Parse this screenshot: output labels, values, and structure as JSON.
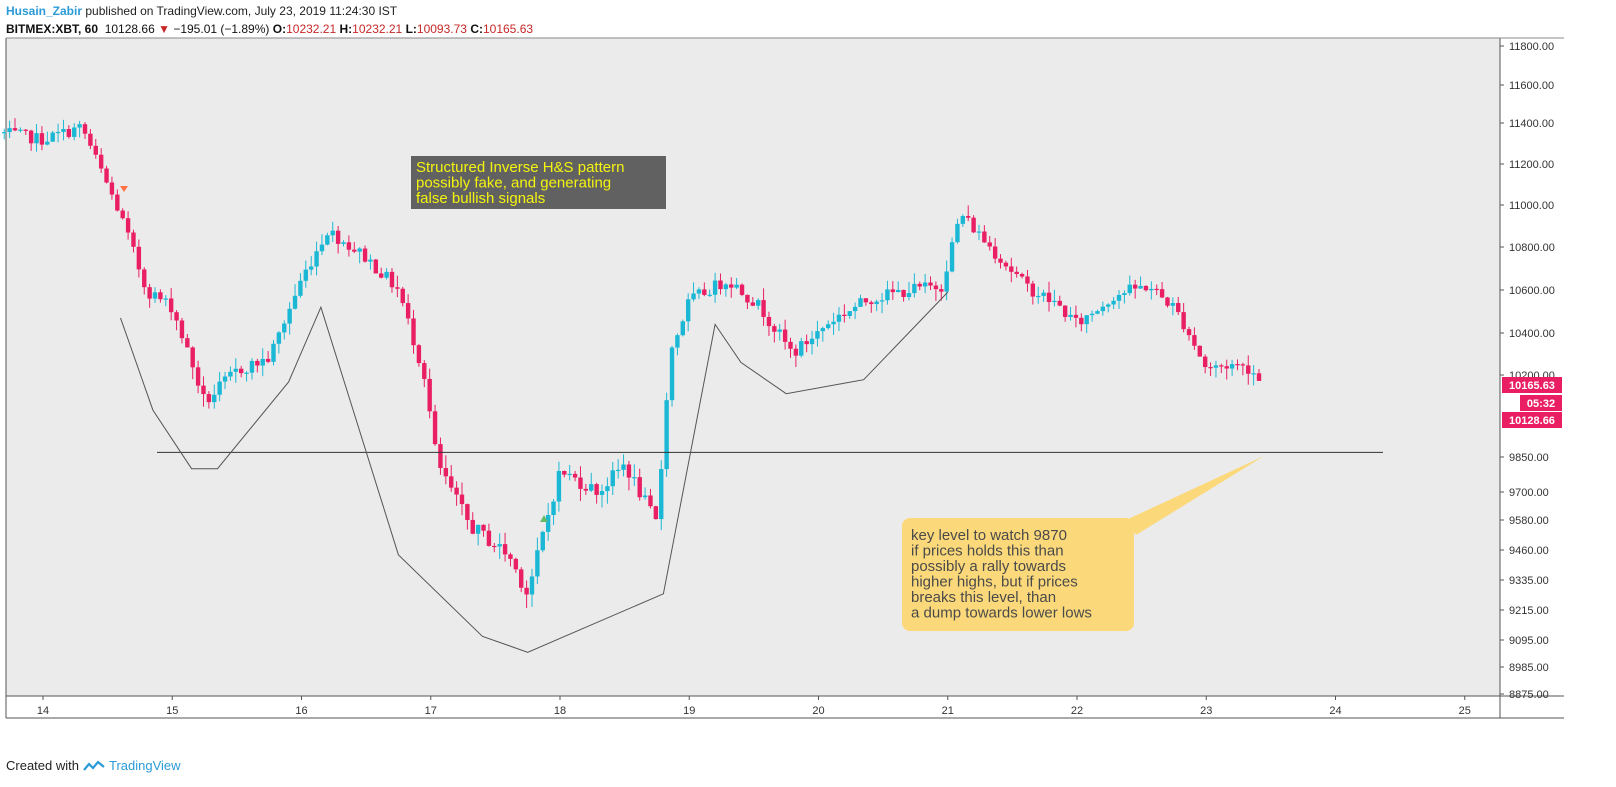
{
  "header": {
    "user": "Husain_Zabir",
    "published": "published on TradingView.com, July 23, 2019 11:24:30 IST",
    "symbol": "BITMEX:XBT, 60",
    "last": "10128.66",
    "change": "−195.01 (−1.89%)",
    "o_label": "O:",
    "o": "10232.21",
    "h_label": "H:",
    "h": "10232.21",
    "l_label": "L:",
    "l": "10093.73",
    "c_label": "C:",
    "c": "10165.63"
  },
  "footer": {
    "created": "Created with",
    "brand": "TradingView"
  },
  "colors": {
    "up": "#1ab8d4",
    "down": "#e91e63",
    "bg": "#ecebec",
    "note_yellow": "#fbd97a",
    "note_dark": "#616161",
    "note_text": "#f4f40f"
  },
  "chart_data": {
    "type": "candlestick",
    "title": "BITMEX:XBT, 60",
    "x_ticks": [
      "14",
      "15",
      "16",
      "17",
      "18",
      "19",
      "20",
      "21",
      "22",
      "23",
      "24",
      "25"
    ],
    "y_ticks": [
      "11800.00",
      "11600.00",
      "11400.00",
      "11200.00",
      "11000.00",
      "10800.00",
      "10600.00",
      "10400.00",
      "10200.00",
      "9850.00",
      "9700.00",
      "9580.00",
      "9460.00",
      "9335.00",
      "9215.00",
      "9095.00",
      "8985.00",
      "8875.00"
    ],
    "price_labels": {
      "close": "10165.63",
      "countdown": "05:32",
      "last": "10128.66"
    },
    "key_level": 9870,
    "pattern_points": [
      {
        "day": 14.6,
        "price": 10470
      },
      {
        "day": 14.85,
        "price": 10050
      },
      {
        "day": 15.15,
        "price": 9800
      },
      {
        "day": 15.35,
        "price": 9800
      },
      {
        "day": 15.9,
        "price": 10170
      },
      {
        "day": 16.15,
        "price": 10520
      },
      {
        "day": 16.75,
        "price": 9440
      },
      {
        "day": 17.4,
        "price": 9110
      },
      {
        "day": 17.75,
        "price": 9045
      },
      {
        "day": 18.8,
        "price": 9280
      },
      {
        "day": 19.2,
        "price": 10440
      },
      {
        "day": 19.4,
        "price": 10260
      },
      {
        "day": 19.75,
        "price": 10120
      },
      {
        "day": 20.35,
        "price": 10180
      },
      {
        "day": 21.0,
        "price": 10590
      }
    ],
    "keypoints": [
      {
        "day": 13.7,
        "price": 11350
      },
      {
        "day": 14.0,
        "price": 11320
      },
      {
        "day": 14.3,
        "price": 11380
      },
      {
        "day": 14.6,
        "price": 10950
      },
      {
        "day": 14.8,
        "price": 10600
      },
      {
        "day": 15.0,
        "price": 10520
      },
      {
        "day": 15.25,
        "price": 10080
      },
      {
        "day": 15.5,
        "price": 10220
      },
      {
        "day": 15.75,
        "price": 10280
      },
      {
        "day": 16.0,
        "price": 10650
      },
      {
        "day": 16.2,
        "price": 10880
      },
      {
        "day": 16.5,
        "price": 10750
      },
      {
        "day": 16.75,
        "price": 10600
      },
      {
        "day": 16.95,
        "price": 10200
      },
      {
        "day": 17.05,
        "price": 9820
      },
      {
        "day": 17.3,
        "price": 9560
      },
      {
        "day": 17.6,
        "price": 9440
      },
      {
        "day": 17.75,
        "price": 9280
      },
      {
        "day": 18.0,
        "price": 9790
      },
      {
        "day": 18.3,
        "price": 9700
      },
      {
        "day": 18.5,
        "price": 9820
      },
      {
        "day": 18.75,
        "price": 9560
      },
      {
        "day": 18.85,
        "price": 10300
      },
      {
        "day": 19.0,
        "price": 10550
      },
      {
        "day": 19.3,
        "price": 10650
      },
      {
        "day": 19.55,
        "price": 10520
      },
      {
        "day": 19.8,
        "price": 10300
      },
      {
        "day": 20.1,
        "price": 10460
      },
      {
        "day": 20.4,
        "price": 10560
      },
      {
        "day": 20.7,
        "price": 10600
      },
      {
        "day": 20.95,
        "price": 10620
      },
      {
        "day": 21.1,
        "price": 10960
      },
      {
        "day": 21.3,
        "price": 10820
      },
      {
        "day": 21.6,
        "price": 10620
      },
      {
        "day": 21.85,
        "price": 10530
      },
      {
        "day": 22.0,
        "price": 10440
      },
      {
        "day": 22.3,
        "price": 10580
      },
      {
        "day": 22.55,
        "price": 10620
      },
      {
        "day": 22.75,
        "price": 10520
      },
      {
        "day": 22.85,
        "price": 10420
      },
      {
        "day": 23.0,
        "price": 10230
      },
      {
        "day": 23.2,
        "price": 10250
      },
      {
        "day": 23.35,
        "price": 10230
      },
      {
        "day": 23.42,
        "price": 10165
      }
    ],
    "annotations": [
      {
        "text": [
          "Structured Inverse H&S pattern",
          "possibly fake, and generating",
          "false bullish signals"
        ]
      },
      {
        "text": [
          "key level to watch 9870",
          "if prices holds this than",
          "possibly a rally towards",
          "higher highs, but if prices",
          "breaks this level, than",
          "a dump towards lower lows"
        ]
      }
    ]
  }
}
